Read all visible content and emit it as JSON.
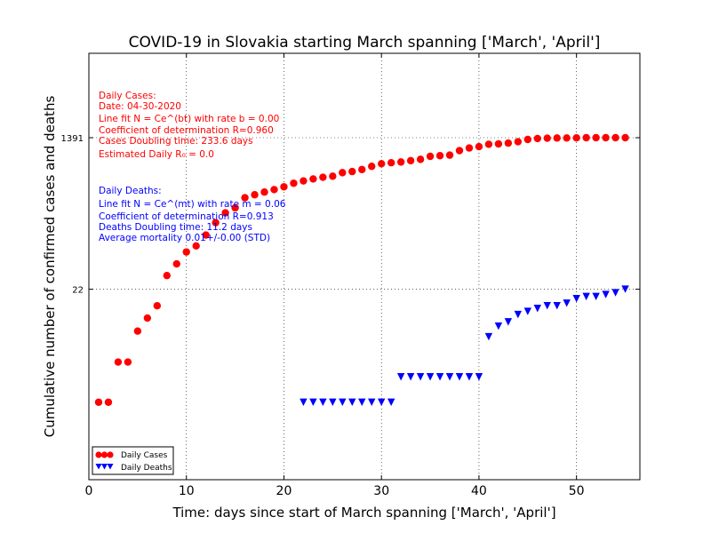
{
  "chart_data": {
    "type": "scatter",
    "title": "COVID-19 in Slovakia starting March spanning ['March', 'April']",
    "xlabel": "Time: days since start of March spanning ['March', 'April']",
    "ylabel": "Cumulative number of confirmed cases and deaths",
    "xlim": [
      0,
      56.5
    ],
    "ylim": [
      0.12,
      14000
    ],
    "yscale": "log",
    "grid": true,
    "x_ticks": [
      0,
      10,
      20,
      30,
      40,
      50
    ],
    "y_ticks": [
      22,
      1391
    ],
    "legend_position": "lower-left",
    "series": [
      {
        "name": "Daily Cases",
        "color": "#ff0000",
        "marker": "circle",
        "x": [
          1,
          2,
          3,
          4,
          5,
          6,
          7,
          8,
          9,
          10,
          11,
          12,
          13,
          14,
          15,
          16,
          17,
          18,
          19,
          20,
          21,
          22,
          23,
          24,
          25,
          26,
          27,
          28,
          29,
          30,
          31,
          32,
          33,
          34,
          35,
          36,
          37,
          38,
          39,
          40,
          41,
          42,
          43,
          44,
          45,
          46,
          47,
          48,
          49,
          50,
          51,
          52,
          53,
          54,
          55
        ],
        "y": [
          1,
          1,
          3,
          3,
          7,
          10,
          14,
          32,
          44,
          61,
          72,
          97,
          136,
          178,
          204,
          269,
          292,
          314,
          336,
          363,
          400,
          426,
          450,
          471,
          485,
          534,
          551,
          582,
          635,
          682,
          701,
          715,
          742,
          769,
          835,
          850,
          863,
          977,
          1049,
          1089,
          1161,
          1173,
          1199,
          1244,
          1325,
          1360,
          1373,
          1379,
          1381,
          1384,
          1391,
          1391,
          1391,
          1391,
          1391
        ]
      },
      {
        "name": "Daily Deaths",
        "color": "#0000ff",
        "marker": "triangle-down",
        "x": [
          22,
          23,
          24,
          25,
          26,
          27,
          28,
          29,
          30,
          31,
          32,
          33,
          34,
          35,
          36,
          37,
          38,
          39,
          40,
          41,
          42,
          43,
          44,
          45,
          46,
          47,
          48,
          49,
          50,
          51,
          52,
          53,
          54,
          55
        ],
        "y": [
          1,
          1,
          1,
          1,
          1,
          1,
          1,
          1,
          1,
          1,
          2,
          2,
          2,
          2,
          2,
          2,
          2,
          2,
          2,
          6,
          8,
          9,
          11,
          12,
          13,
          14,
          14,
          15,
          17,
          18,
          18,
          19,
          20,
          22
        ]
      }
    ],
    "annotations": {
      "cases": {
        "color": "#ff0000",
        "lines": [
          "Daily Cases:",
          "Date: 04-30-2020",
          "Line fit N = Ce^(bt) with rate b = 0.00",
          "Coefficient of determination R=0.960",
          "Cases Doubling time: 233.6 days",
          "Estimated Daily R₀ = 0.0"
        ]
      },
      "deaths": {
        "color": "#0000ff",
        "lines": [
          "Daily Deaths:",
          "Line fit N = Ce^(mt) with rate m = 0.06",
          "Coefficient of determination R=0.913",
          "Deaths Doubling time: 11.2 days",
          "Average mortality 0.01+/-0.00 (STD)"
        ]
      }
    }
  }
}
